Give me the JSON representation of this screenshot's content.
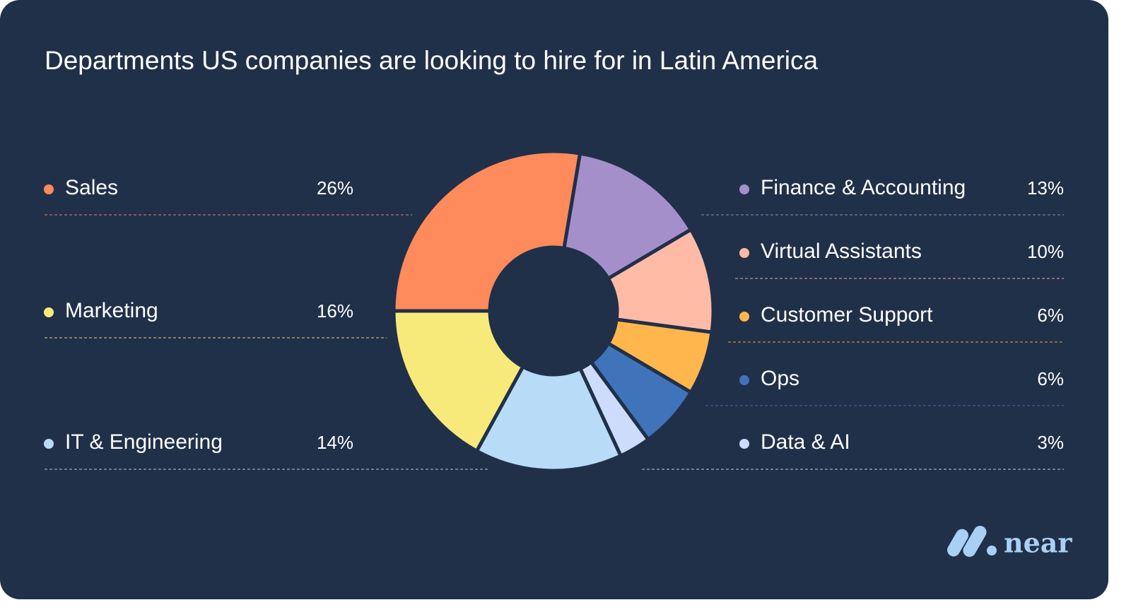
{
  "chart_data": {
    "type": "donut",
    "title": "Departments US companies are looking to hire for in Latin America",
    "categories": [
      "Sales",
      "Finance & Accounting",
      "Virtual Assistants",
      "Customer Support",
      "Ops",
      "Data & AI",
      "IT & Engineering",
      "Marketing"
    ],
    "values": [
      26,
      13,
      10,
      6,
      6,
      3,
      14,
      16
    ],
    "value_labels": [
      "26%",
      "13%",
      "10%",
      "6%",
      "6%",
      "3%",
      "14%",
      "16%"
    ],
    "colors": [
      "#ff8a5c",
      "#a58fcb",
      "#ffbba6",
      "#ffb64d",
      "#3f74bb",
      "#cddcfa",
      "#b8dcf7",
      "#f7ea7a"
    ],
    "logo": "near"
  }
}
